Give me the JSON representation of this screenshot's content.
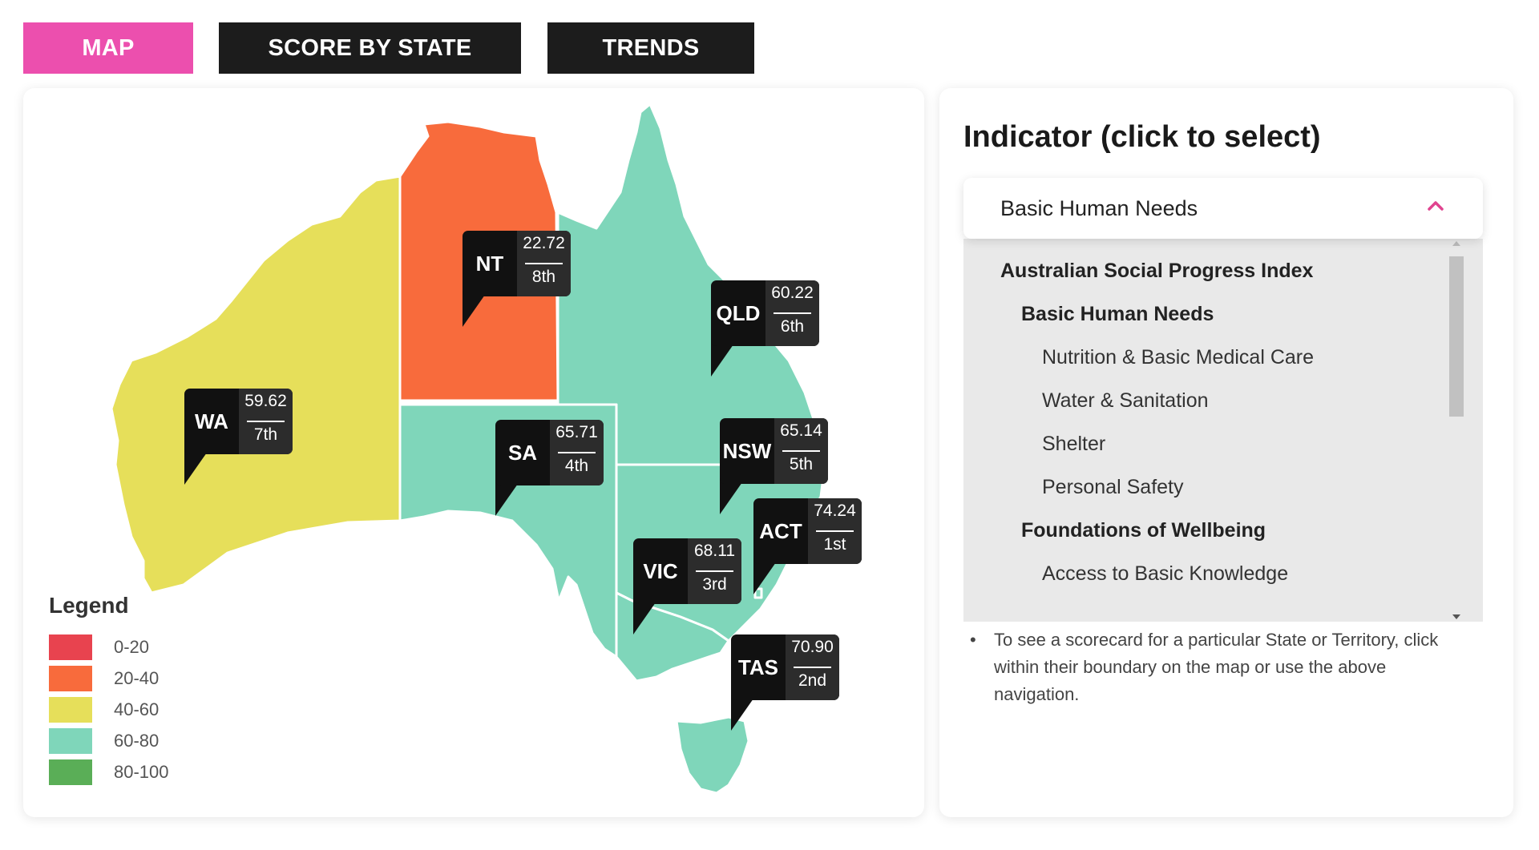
{
  "tabs": [
    {
      "label": "MAP",
      "active": true
    },
    {
      "label": "SCORE BY STATE",
      "active": false
    },
    {
      "label": "TRENDS",
      "active": false
    }
  ],
  "colors": {
    "tab_active": "#ec4fae",
    "tab_inactive": "#1c1c1c",
    "band_0_20": "#e8434f",
    "band_20_40": "#f86b3c",
    "band_40_60": "#e6df5a",
    "band_60_80": "#7fd6ba",
    "band_80_100": "#5aae57"
  },
  "map": {
    "states": [
      {
        "abbr": "WA",
        "score": "59.62",
        "rank": "7th",
        "band": "40-60"
      },
      {
        "abbr": "NT",
        "score": "22.72",
        "rank": "8th",
        "band": "20-40"
      },
      {
        "abbr": "QLD",
        "score": "60.22",
        "rank": "6th",
        "band": "60-80"
      },
      {
        "abbr": "SA",
        "score": "65.71",
        "rank": "4th",
        "band": "60-80"
      },
      {
        "abbr": "NSW",
        "score": "65.14",
        "rank": "5th",
        "band": "60-80"
      },
      {
        "abbr": "ACT",
        "score": "74.24",
        "rank": "1st",
        "band": "60-80"
      },
      {
        "abbr": "VIC",
        "score": "68.11",
        "rank": "3rd",
        "band": "60-80"
      },
      {
        "abbr": "TAS",
        "score": "70.90",
        "rank": "2nd",
        "band": "60-80"
      }
    ],
    "legend": {
      "title": "Legend",
      "items": [
        "0-20",
        "20-40",
        "40-60",
        "60-80",
        "80-100"
      ]
    }
  },
  "indicator": {
    "title": "Indicator (click to select)",
    "selected": "Basic Human Needs",
    "options": [
      {
        "label": "Australian Social Progress Index",
        "level": 0
      },
      {
        "label": "Basic Human Needs",
        "level": 1
      },
      {
        "label": "Nutrition & Basic Medical Care",
        "level": 2
      },
      {
        "label": "Water & Sanitation",
        "level": 2
      },
      {
        "label": "Shelter",
        "level": 2
      },
      {
        "label": "Personal Safety",
        "level": 2
      },
      {
        "label": "Foundations of Wellbeing",
        "level": 1
      },
      {
        "label": "Access to Basic Knowledge",
        "level": 2
      }
    ],
    "note_bullet": "•",
    "note": "To see a scorecard for a particular State or Territory, click within their boundary on the map or use the above navigation."
  }
}
